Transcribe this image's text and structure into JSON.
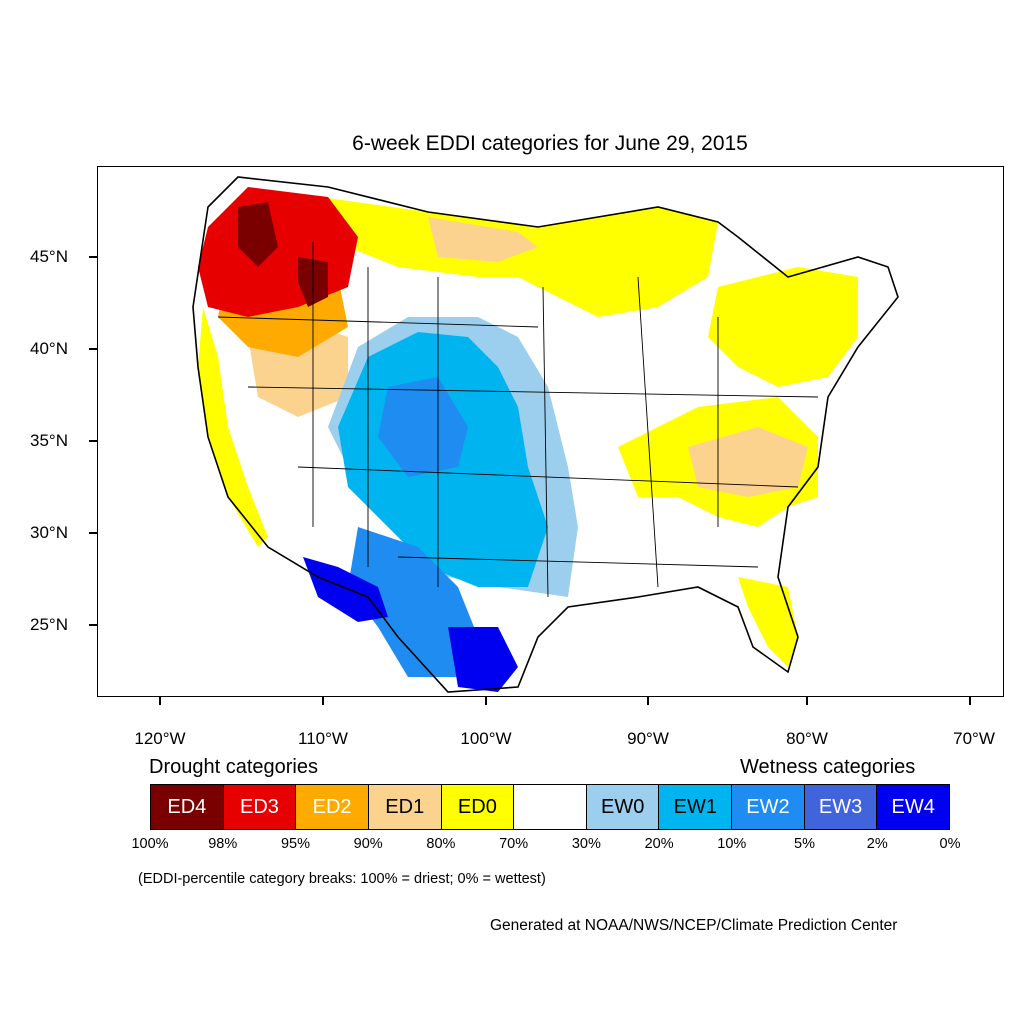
{
  "title": "6-week EDDI categories for June 29, 2015",
  "axes": {
    "lat_labels": [
      "45°N",
      "40°N",
      "35°N",
      "30°N",
      "25°N"
    ],
    "lon_labels": [
      "120°W",
      "110°W",
      "100°W",
      "90°W",
      "80°W",
      "70°W"
    ]
  },
  "legend": {
    "drought_heading": "Drought categories",
    "wetness_heading": "Wetness categories",
    "categories": [
      {
        "label": "ED4",
        "color": "#7a0000",
        "text_color": "#ffffff"
      },
      {
        "label": "ED3",
        "color": "#e60000",
        "text_color": "#ffffff"
      },
      {
        "label": "ED2",
        "color": "#ffaa00",
        "text_color": "#ffffff"
      },
      {
        "label": "ED1",
        "color": "#fcd38e",
        "text_color": "#000000"
      },
      {
        "label": "ED0",
        "color": "#ffff00",
        "text_color": "#000000"
      },
      {
        "label": "",
        "color": "#ffffff",
        "text_color": "#000000"
      },
      {
        "label": "EW0",
        "color": "#9ccfee",
        "text_color": "#000000"
      },
      {
        "label": "EW1",
        "color": "#00b4f0",
        "text_color": "#000000"
      },
      {
        "label": "EW2",
        "color": "#1e8cf0",
        "text_color": "#ffffff"
      },
      {
        "label": "EW3",
        "color": "#4164dc",
        "text_color": "#ffffff"
      },
      {
        "label": "EW4",
        "color": "#0000f0",
        "text_color": "#ffffff"
      }
    ],
    "percentiles": [
      "100%",
      "98%",
      "95%",
      "90%",
      "80%",
      "70%",
      "30%",
      "20%",
      "10%",
      "5%",
      "2%",
      "0%"
    ]
  },
  "note": "(EDDI-percentile category breaks: 100% = driest; 0% = wettest)",
  "credit": "Generated at NOAA/NWS/NCEP/Climate Prediction Center"
}
